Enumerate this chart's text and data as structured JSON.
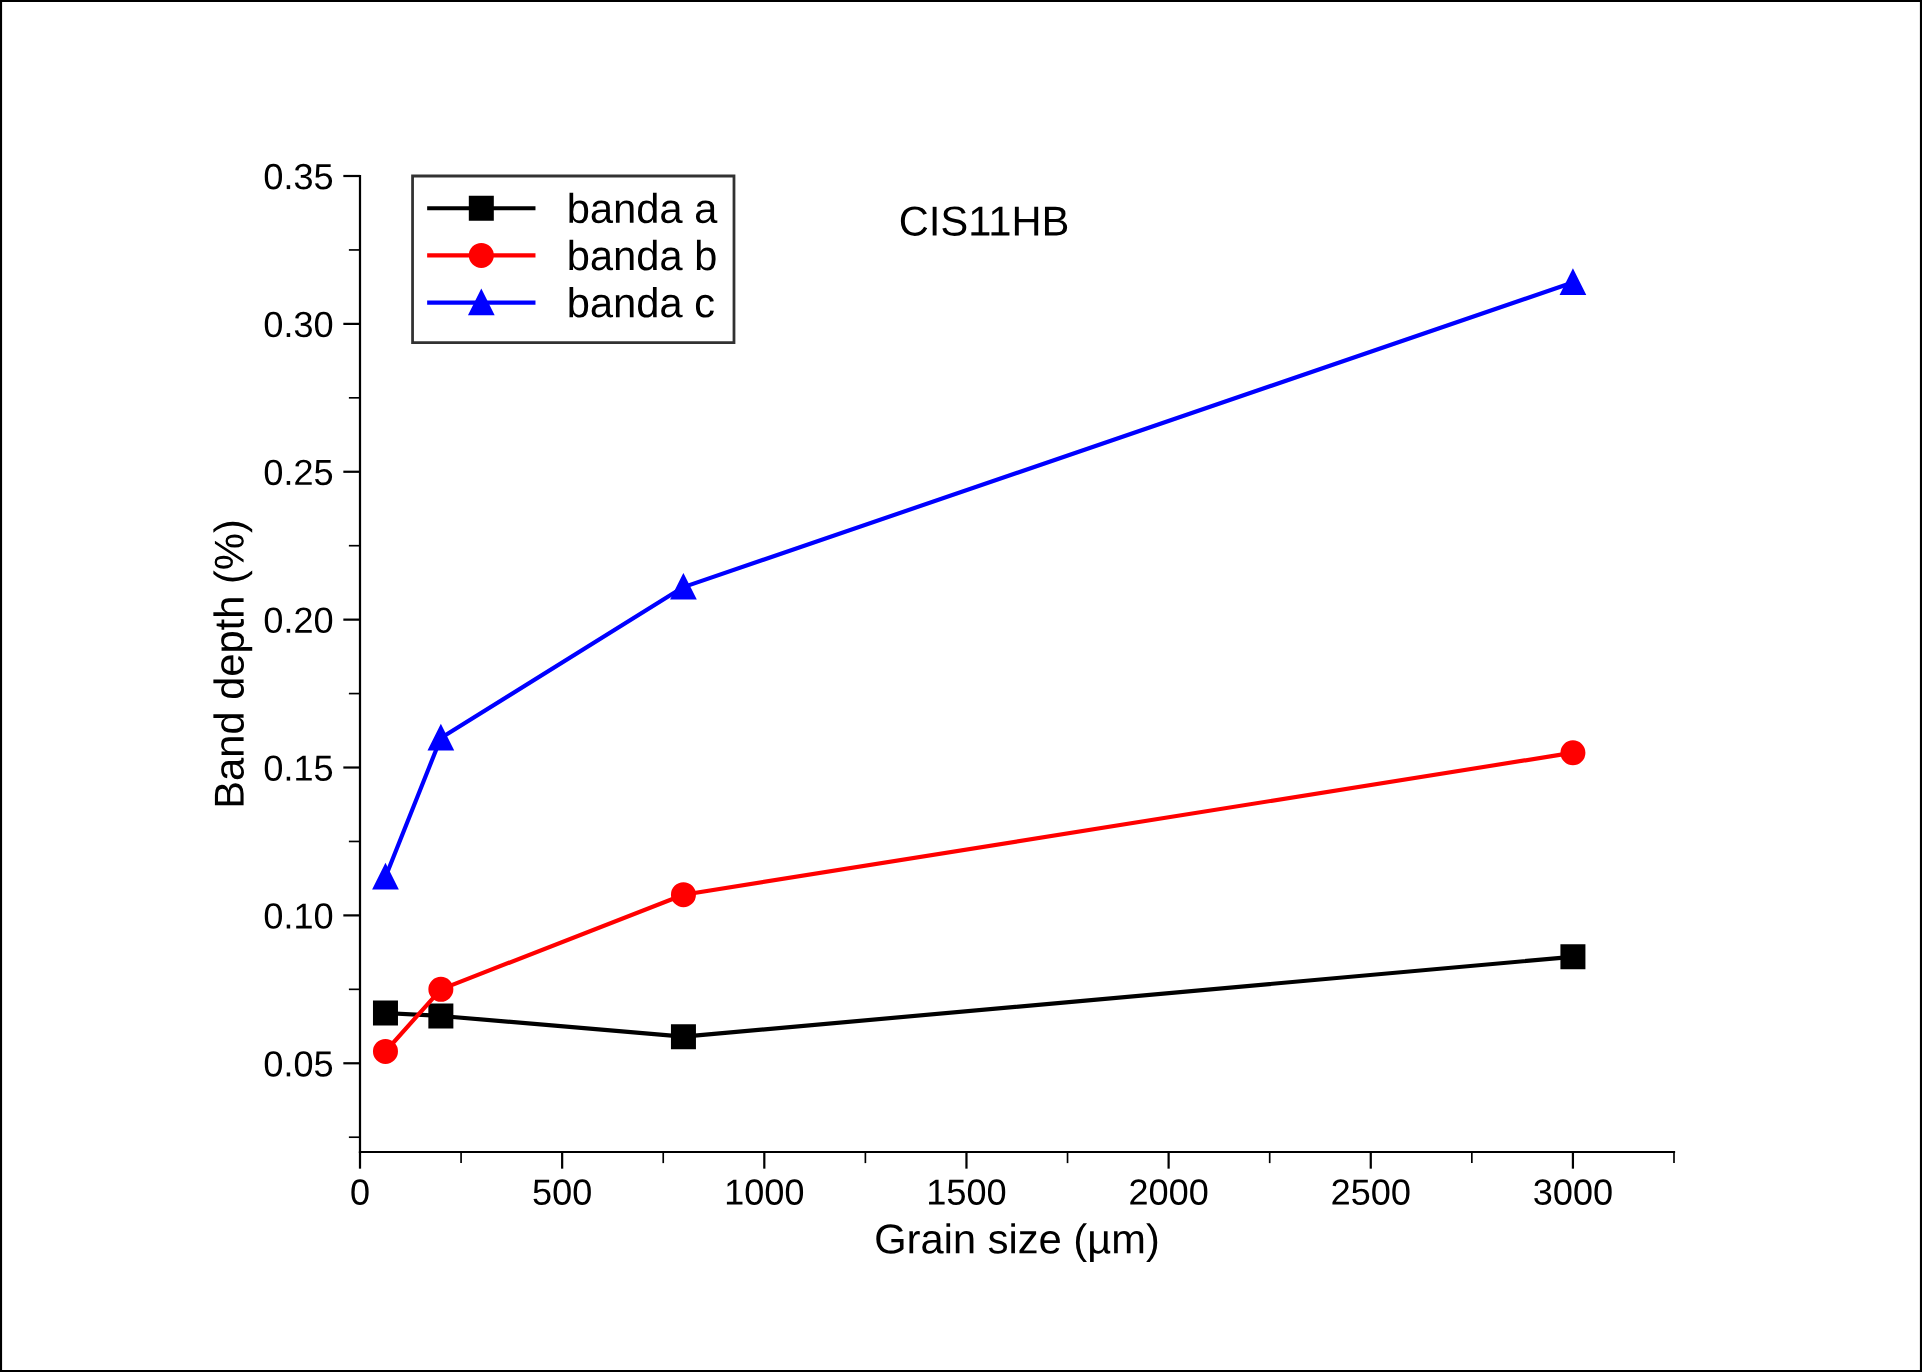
{
  "chart_data": {
    "type": "line",
    "title": "CIS11HB",
    "xlabel": "Grain size (µm)",
    "ylabel": "Band depth (%)",
    "x": [
      63,
      200,
      800,
      3000
    ],
    "series": [
      {
        "name": "banda a",
        "color": "#000000",
        "marker": "square",
        "values": [
          0.067,
          0.066,
          0.059,
          0.086
        ]
      },
      {
        "name": "banda b",
        "color": "#ff0000",
        "marker": "circle",
        "values": [
          0.054,
          0.075,
          0.107,
          0.155
        ]
      },
      {
        "name": "banda c",
        "color": "#0000ff",
        "marker": "triangle",
        "values": [
          0.113,
          0.16,
          0.211,
          0.314
        ]
      }
    ],
    "xlim": [
      0,
      3250
    ],
    "xticks": [
      0,
      500,
      1000,
      1500,
      2000,
      2500,
      3000
    ],
    "ylim": [
      0.02,
      0.35
    ],
    "yticks": [
      {
        "value": 0.05,
        "label": "0.05"
      },
      {
        "value": 0.1,
        "label": "0.10"
      },
      {
        "value": 0.15,
        "label": "0.15"
      },
      {
        "value": 0.2,
        "label": "0.20"
      },
      {
        "value": 0.25,
        "label": "0.25"
      },
      {
        "value": 0.3,
        "label": "0.30"
      },
      {
        "value": 0.35,
        "label": "0.35"
      }
    ],
    "grid": false,
    "legend": "top left",
    "line_style": "solid"
  }
}
